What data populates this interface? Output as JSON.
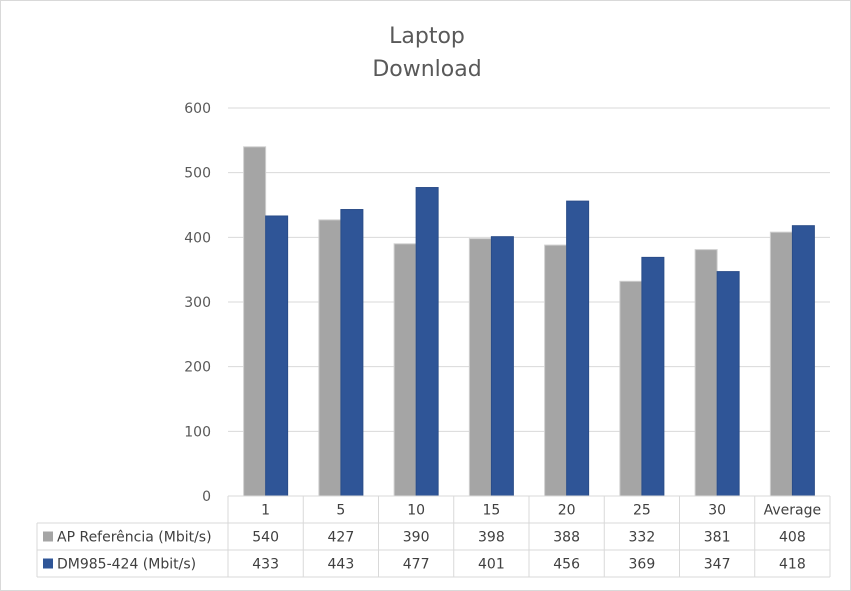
{
  "chart_data": {
    "type": "bar",
    "title_lines": [
      "Laptop",
      "Download"
    ],
    "categories": [
      "1",
      "5",
      "10",
      "15",
      "20",
      "25",
      "30",
      "Average"
    ],
    "series": [
      {
        "name": "AP Referência (Mbit/s)",
        "color": "#a5a5a5",
        "values": [
          540,
          427,
          390,
          398,
          388,
          332,
          381,
          408
        ]
      },
      {
        "name": "DM985-424 (Mbit/s)",
        "color": "#2f5597",
        "values": [
          433,
          443,
          477,
          401,
          456,
          369,
          347,
          418
        ]
      }
    ],
    "ylim": [
      0,
      600
    ],
    "yticks": [
      0,
      100,
      200,
      300,
      400,
      500,
      600
    ],
    "grid": true,
    "legend": "data-table"
  }
}
